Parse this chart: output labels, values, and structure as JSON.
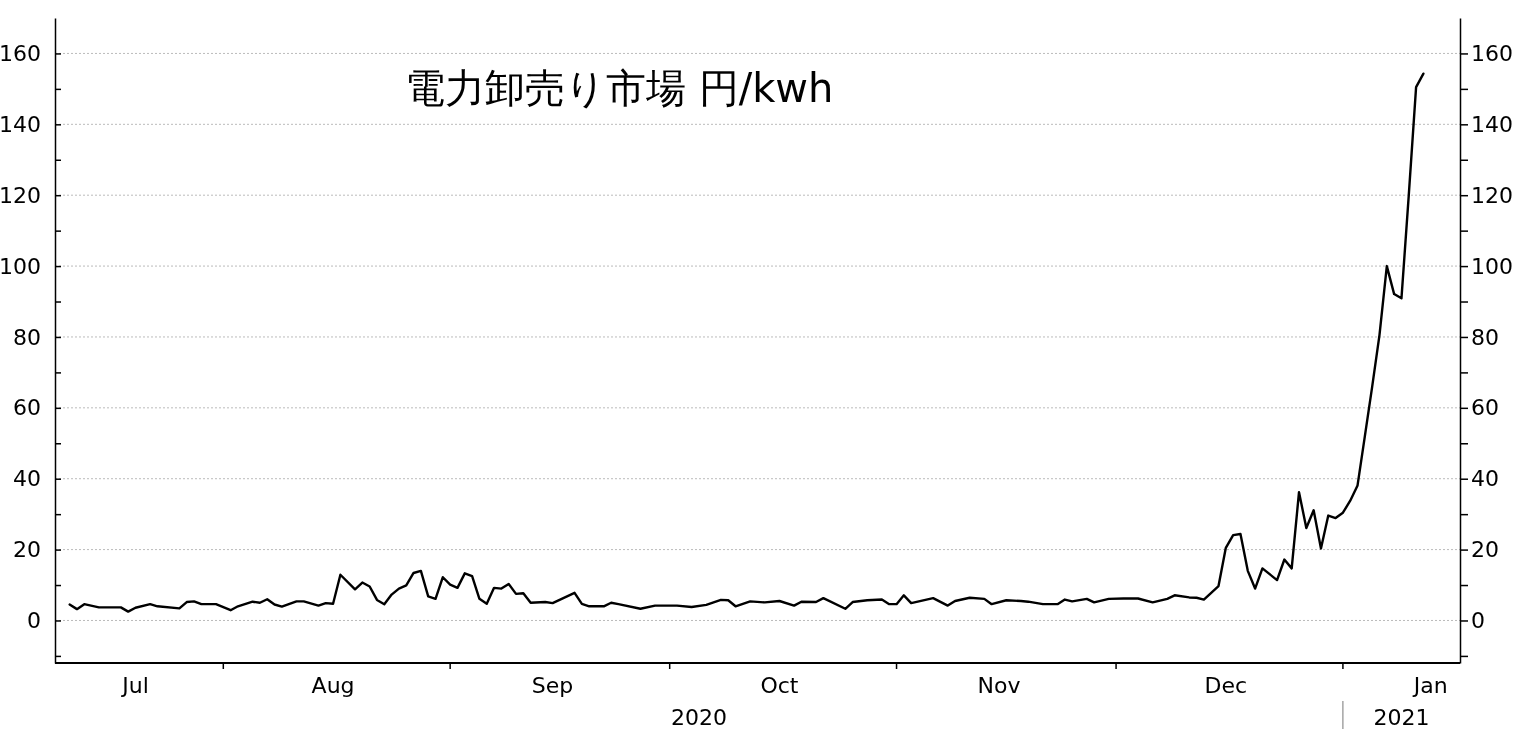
{
  "chart_data": {
    "type": "line",
    "title": "電力卸売り市場  円/kwh",
    "x": [
      "2020-07-11",
      "2020-07-12",
      "2020-07-13",
      "2020-07-15",
      "2020-07-18",
      "2020-07-19",
      "2020-07-20",
      "2020-07-22",
      "2020-07-23",
      "2020-07-26",
      "2020-07-27",
      "2020-07-28",
      "2020-07-29",
      "2020-07-31",
      "2020-08-02",
      "2020-08-03",
      "2020-08-05",
      "2020-08-06",
      "2020-08-07",
      "2020-08-08",
      "2020-08-09",
      "2020-08-11",
      "2020-08-12",
      "2020-08-14",
      "2020-08-15",
      "2020-08-16",
      "2020-08-17",
      "2020-08-19",
      "2020-08-20",
      "2020-08-21",
      "2020-08-22",
      "2020-08-23",
      "2020-08-24",
      "2020-08-25",
      "2020-08-26",
      "2020-08-27",
      "2020-08-28",
      "2020-08-29",
      "2020-08-30",
      "2020-08-31",
      "2020-09-01",
      "2020-09-02",
      "2020-09-03",
      "2020-09-04",
      "2020-09-05",
      "2020-09-06",
      "2020-09-07",
      "2020-09-08",
      "2020-09-09",
      "2020-09-10",
      "2020-09-11",
      "2020-09-12",
      "2020-09-14",
      "2020-09-15",
      "2020-09-18",
      "2020-09-19",
      "2020-09-20",
      "2020-09-22",
      "2020-09-23",
      "2020-09-24",
      "2020-09-27",
      "2020-09-29",
      "2020-10-02",
      "2020-10-04",
      "2020-10-06",
      "2020-10-08",
      "2020-10-09",
      "2020-10-10",
      "2020-10-12",
      "2020-10-14",
      "2020-10-16",
      "2020-10-18",
      "2020-10-19",
      "2020-10-21",
      "2020-10-22",
      "2020-10-25",
      "2020-10-26",
      "2020-10-28",
      "2020-10-30",
      "2020-10-31",
      "2020-11-01",
      "2020-11-02",
      "2020-11-03",
      "2020-11-06",
      "2020-11-08",
      "2020-11-09",
      "2020-11-11",
      "2020-11-13",
      "2020-11-14",
      "2020-11-16",
      "2020-11-18",
      "2020-11-19",
      "2020-11-21",
      "2020-11-23",
      "2020-11-24",
      "2020-11-25",
      "2020-11-27",
      "2020-11-28",
      "2020-11-30",
      "2020-12-02",
      "2020-12-04",
      "2020-12-06",
      "2020-12-08",
      "2020-12-09",
      "2020-12-11",
      "2020-12-12",
      "2020-12-13",
      "2020-12-15",
      "2020-12-16",
      "2020-12-17",
      "2020-12-18",
      "2020-12-19",
      "2020-12-20",
      "2020-12-21",
      "2020-12-23",
      "2020-12-24",
      "2020-12-25",
      "2020-12-26",
      "2020-12-27",
      "2020-12-28",
      "2020-12-29",
      "2020-12-30",
      "2020-12-31",
      "2021-01-01",
      "2021-01-02",
      "2021-01-03",
      "2021-01-04",
      "2021-01-05",
      "2021-01-06",
      "2021-01-07",
      "2021-01-08",
      "2021-01-09",
      "2021-01-10",
      "2021-01-11",
      "2021-01-12"
    ],
    "series": [
      {
        "color": "#000000",
        "values": [
          4.5,
          3.2,
          4.6,
          3.7,
          3.7,
          2.5,
          3.6,
          4.6,
          4,
          3.4,
          5.2,
          5.4,
          4.6,
          4.6,
          2.9,
          4,
          5.3,
          5,
          6,
          4.5,
          3.9,
          5.4,
          5.4,
          4.2,
          4.9,
          4.7,
          12.9,
          8.8,
          10.7,
          9.6,
          5.8,
          4.6,
          7.3,
          9,
          9.9,
          13.4,
          14,
          6.8,
          6.1,
          12.2,
          10.1,
          9.2,
          13.3,
          12.5,
          6.1,
          4.7,
          9.2,
          9,
          10.3,
          7.5,
          7.7,
          5,
          5.2,
          4.9,
          7.8,
          4.7,
          4,
          4,
          5,
          4.6,
          3.3,
          4.2,
          4.2,
          3.8,
          4.4,
          5.8,
          5.7,
          4,
          5.4,
          5.1,
          5.5,
          4.2,
          5.3,
          5.2,
          6.3,
          3.3,
          5.2,
          5.7,
          5.9,
          4.6,
          4.6,
          7.1,
          4.9,
          6.3,
          4.2,
          5.5,
          6.4,
          6.1,
          4.6,
          5.7,
          5.5,
          5.3,
          4.6,
          4.6,
          5.9,
          5.4,
          6.1,
          5.1,
          6.1,
          6.2,
          6.2,
          5.1,
          6.1,
          7.1,
          6.5,
          6.4,
          5.9,
          9.7,
          20.5,
          24.1,
          24.4,
          14,
          9,
          14.7,
          11.4,
          17.2,
          14.7,
          36.2,
          26.1,
          31.1,
          20.3,
          29.6,
          28.9,
          30.4,
          33.8,
          38.1,
          52,
          66,
          80.6,
          100,
          92.1,
          90.9,
          120,
          150.5,
          154.3
        ]
      }
    ],
    "xlim": [
      "2020-07-09",
      "2021-01-17"
    ],
    "xticks": [
      {
        "value": "2020-07-20",
        "label": "Jul"
      },
      {
        "value": "2020-08-01",
        "label": null
      },
      {
        "value": "2020-08-16",
        "label": "Aug"
      },
      {
        "value": "2020-09-01",
        "label": null
      },
      {
        "value": "2020-09-15",
        "label": "Sep"
      },
      {
        "value": "2020-10-01",
        "label": null
      },
      {
        "value": "2020-10-16",
        "label": "Oct"
      },
      {
        "value": "2020-11-01",
        "label": null
      },
      {
        "value": "2020-11-15",
        "label": "Nov"
      },
      {
        "value": "2020-12-01",
        "label": null
      },
      {
        "value": "2020-12-16",
        "label": "Dec"
      },
      {
        "value": "2021-01-01",
        "label": null
      },
      {
        "value": "2021-01-13",
        "label": "Jan"
      }
    ],
    "x2lim": [
      "2020-07-09",
      "2021-01-17"
    ],
    "x2ticks": [
      {
        "value": "2020-10-05",
        "label": "2020"
      },
      {
        "value": "2021-01-01",
        "label": null
      },
      {
        "value": "2021-01-09",
        "label": "2021"
      }
    ],
    "ylim": [
      -12,
      170
    ],
    "yticks": [
      {
        "value": -10,
        "label": null
      },
      0,
      {
        "value": 10,
        "label": null
      },
      20,
      {
        "value": 30,
        "label": null
      },
      40,
      {
        "value": 50,
        "label": null
      },
      60,
      {
        "value": 70,
        "label": null
      },
      80,
      {
        "value": 90,
        "label": null
      },
      100,
      {
        "value": 110,
        "label": null
      },
      120,
      {
        "value": 130,
        "label": null
      },
      140,
      {
        "value": 150,
        "label": null
      },
      160
    ],
    "y2lim": [
      -12,
      170
    ],
    "y2ticks": [
      {
        "value": -10,
        "label": null
      },
      0,
      {
        "value": 10,
        "label": null
      },
      20,
      {
        "value": 30,
        "label": null
      },
      40,
      {
        "value": 50,
        "label": null
      },
      60,
      {
        "value": 70,
        "label": null
      },
      80,
      {
        "value": 90,
        "label": null
      },
      100,
      {
        "value": 110,
        "label": null
      },
      120,
      {
        "value": 130,
        "label": null
      },
      140,
      {
        "value": 150,
        "label": null
      },
      160
    ],
    "grid": "y"
  }
}
